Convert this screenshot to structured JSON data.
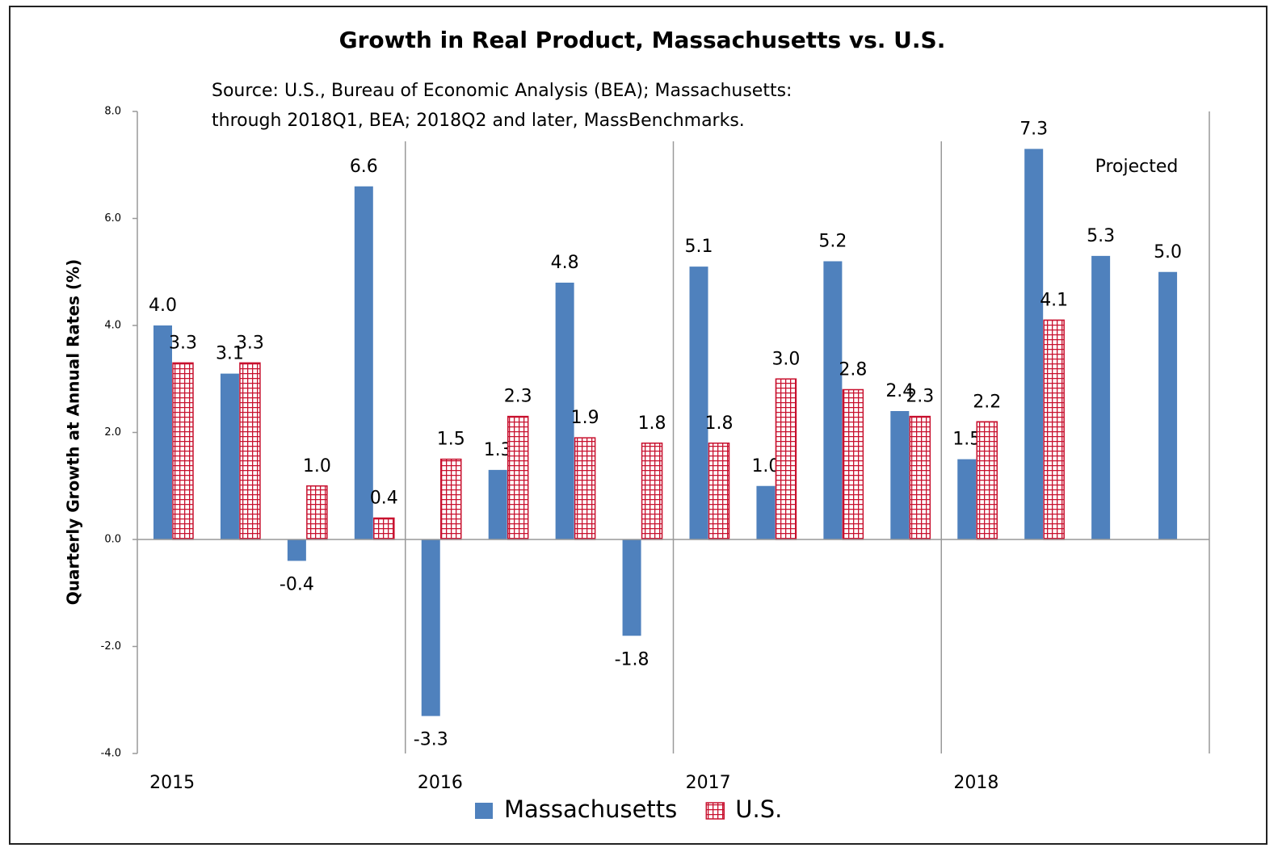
{
  "chart_data": {
    "type": "bar",
    "title": "Growth in Real Product, Massachusetts vs. U.S.",
    "subtitle": [
      "Source: U.S., Bureau of Economic Analysis (BEA); Massachusetts:",
      "through 2018Q1, BEA; 2018Q2 and later, MassBenchmarks."
    ],
    "y_label": "Quarterly Growth at Annual Rates (%)",
    "annotation": "Projected",
    "categories": [
      "2015",
      null,
      null,
      null,
      "2016",
      null,
      null,
      null,
      "2017",
      null,
      null,
      null,
      "2018",
      null,
      null,
      null
    ],
    "series": [
      {
        "name": "Massachusetts",
        "color": "#4f81bd",
        "values": [
          4.0,
          3.1,
          -0.4,
          6.6,
          -3.3,
          1.3,
          4.8,
          -1.8,
          5.1,
          1.0,
          5.2,
          2.4,
          1.5,
          7.3,
          5.3,
          5.0
        ],
        "value_labels": [
          "4.0",
          "3.1",
          "-0.4",
          "6.6",
          "-3.3",
          "1.3",
          "4.8",
          "-1.8",
          "5.1",
          "1.0",
          "5.2",
          "2.4",
          "1.5",
          "7.3",
          "5.3",
          "5.0"
        ]
      },
      {
        "name": "U.S.",
        "color": "#c8102e",
        "values": [
          3.3,
          3.3,
          1.0,
          0.4,
          1.5,
          2.3,
          1.9,
          1.8,
          1.8,
          3.0,
          2.8,
          2.3,
          2.2,
          4.1,
          null,
          null
        ],
        "value_labels": [
          "3.3",
          "3.3",
          "1.0",
          "0.4",
          "1.5",
          "2.3",
          "1.9",
          "1.8",
          "1.8",
          "3.0",
          "2.8",
          "2.3",
          "2.2",
          "4.1",
          null,
          null
        ]
      }
    ],
    "ylim": [
      -4,
      8
    ],
    "yticks": [
      {
        "value": -4,
        "label": "-4.0"
      },
      {
        "value": -2,
        "label": "-2.0"
      },
      {
        "value": 0,
        "label": "0.0"
      },
      {
        "value": 2,
        "label": "2.0"
      },
      {
        "value": 4,
        "label": "4.0"
      },
      {
        "value": 6,
        "label": "6.0"
      },
      {
        "value": 8,
        "label": "8.0"
      }
    ],
    "legend": "bottom"
  }
}
